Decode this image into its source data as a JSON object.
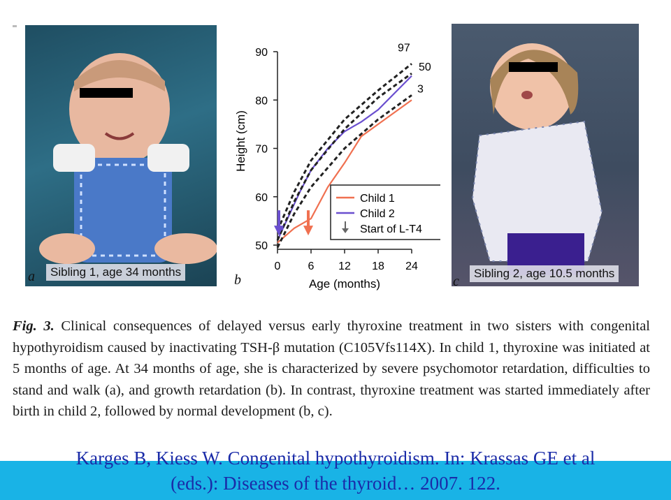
{
  "photos": {
    "a": {
      "letter": "a",
      "caption": "Sibling 1, age 34 months"
    },
    "c": {
      "letter": "c",
      "caption": "Sibling 2, age 10.5 months"
    }
  },
  "chart_letter": "b",
  "chart_data": {
    "type": "line",
    "xlabel": "Age (months)",
    "ylabel": "Height (cm)",
    "xlim": [
      0,
      24
    ],
    "ylim": [
      50,
      90
    ],
    "xticks": [
      0,
      6,
      12,
      18,
      24
    ],
    "yticks": [
      50,
      60,
      70,
      80,
      90
    ],
    "percentile_labels": [
      "97",
      "50",
      "3"
    ],
    "series": [
      {
        "name": "Child 1",
        "color": "#f07050",
        "x": [
          0,
          3,
          6,
          9,
          12,
          15,
          18,
          24
        ],
        "y": [
          50.5,
          53.5,
          55.5,
          62,
          67,
          72.5,
          75,
          80
        ]
      },
      {
        "name": "Child 2",
        "color": "#6a4fcf",
        "x": [
          0,
          2,
          4,
          6,
          9,
          12,
          15,
          18,
          24
        ],
        "y": [
          51,
          56,
          61,
          65.5,
          70,
          73.5,
          75.5,
          78,
          85
        ]
      },
      {
        "name": "97",
        "style": "dashed",
        "x": [
          0,
          3,
          6,
          12,
          18,
          24
        ],
        "y": [
          53,
          61,
          67.5,
          76,
          82,
          87.5
        ]
      },
      {
        "name": "50",
        "style": "dashed",
        "x": [
          0,
          3,
          6,
          12,
          18,
          24
        ],
        "y": [
          51,
          59,
          65.5,
          74,
          80.5,
          85.5
        ]
      },
      {
        "name": "3",
        "style": "dashed",
        "x": [
          0,
          3,
          6,
          12,
          18,
          24
        ],
        "y": [
          49.5,
          56.5,
          62,
          70,
          76,
          81
        ]
      }
    ],
    "legend": [
      {
        "label": "Child 1",
        "color": "#f07050",
        "kind": "line"
      },
      {
        "label": "Child 2",
        "color": "#6a4fcf",
        "kind": "line"
      },
      {
        "label": "Start of L-T4",
        "color": "#666666",
        "kind": "arrow"
      }
    ],
    "start_arrows": [
      {
        "series": "Child 2",
        "x": 0,
        "color": "#6a4fcf"
      },
      {
        "series": "Child 1",
        "x": 5,
        "color": "#f07050"
      }
    ],
    "legend_position": "bottom-right"
  },
  "caption": {
    "fig_label": "Fig. 3.",
    "text": "Clinical consequences of delayed versus early thyroxine treatment in two sisters with congenital hypothyroidism caused by inactivating TSH-β mutation (C105Vfs114X). In child 1, thyroxine was initiated at 5 months of age. At 34 months of age, she is characterized by severe psychomotor retardation, difficulties to stand and walk (a), and growth retardation (b). In contrast, thyroxine treatment was started immediately after birth in child 2, followed by normal development (b, c)."
  },
  "citation": {
    "line1": "Karges B, Kiess W. Congenital hypothyroidism. In: Krassas GE et al",
    "line2": "(eds.): Diseases of the thyroid… 2007. 122."
  }
}
